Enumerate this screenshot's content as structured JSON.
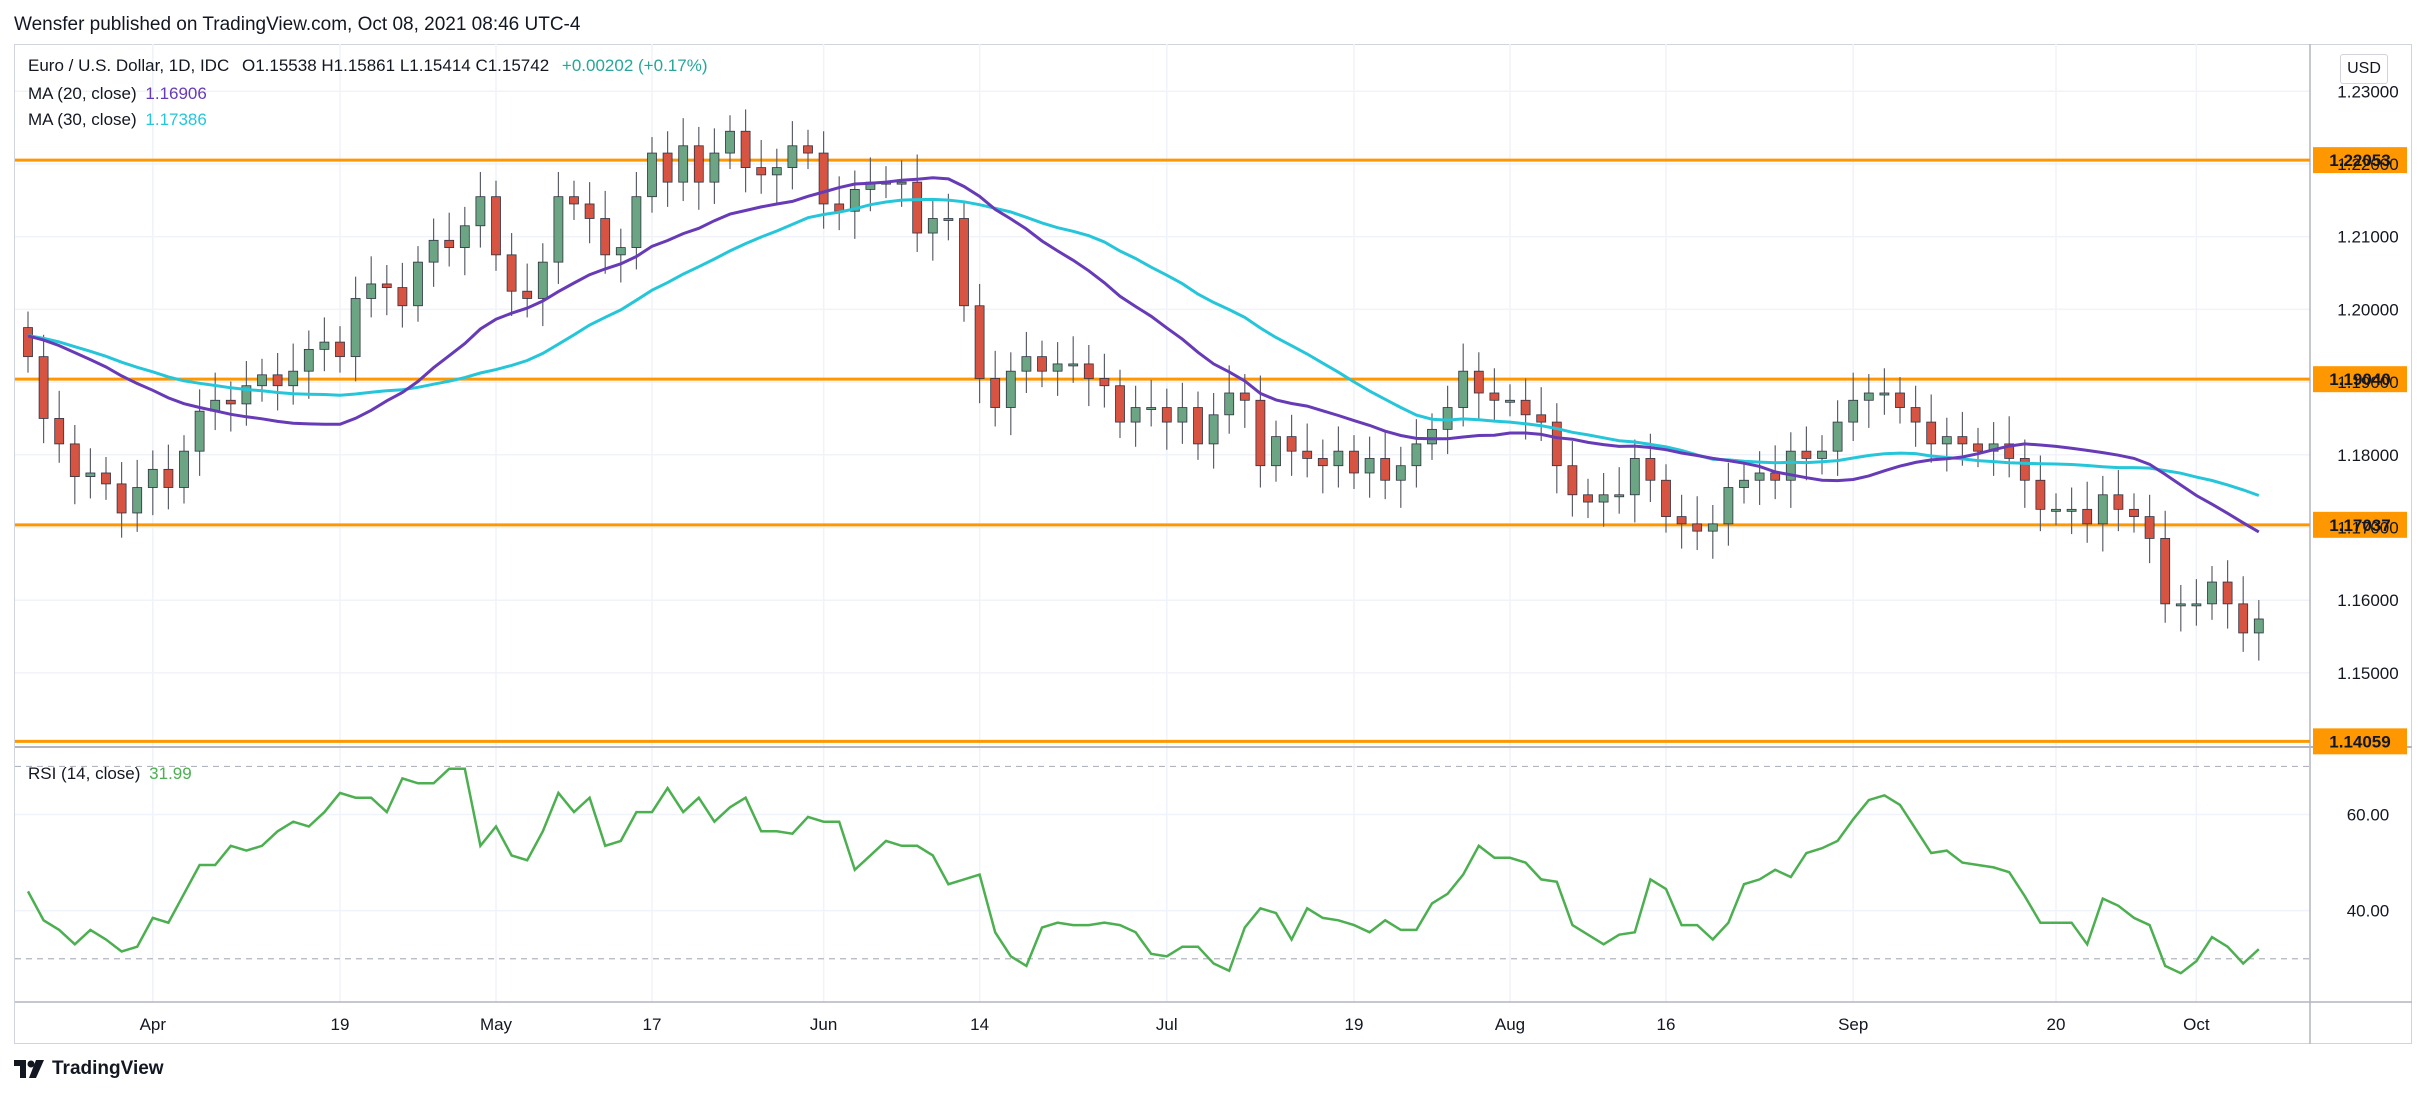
{
  "header": {
    "published": "Wensfer published on TradingView.com, Oct 08, 2021 08:46 UTC-4"
  },
  "legend": {
    "symbol": "Euro / U.S. Dollar, 1D, IDC",
    "ohlc": "O1.15538  H1.15861  L1.15414  C1.15742",
    "change": "+0.00202 (+0.17%)",
    "ma20_label": "MA (20, close)",
    "ma20_value": "1.16906",
    "ma30_label": "MA (30, close)",
    "ma30_value": "1.17386",
    "rsi_label": "RSI (14, close)",
    "rsi_value": "31.99"
  },
  "currency_button": "USD",
  "footer": {
    "brand": "TradingView"
  },
  "colors": {
    "up": "#6ba583",
    "down": "#d75442",
    "ma20": "#673ab7",
    "ma30": "#26c6da",
    "level": "#ff9800",
    "rsi": "#4caf50",
    "grid": "#f0f3fa"
  },
  "chart_data": [
    {
      "type": "candlestick",
      "title": "Euro / U.S. Dollar, 1D, IDC",
      "ylim": [
        1.1405,
        1.2365
      ],
      "y_ticks": [
        1.15,
        1.16,
        1.17,
        1.18,
        1.19,
        1.2,
        1.21,
        1.22,
        1.23
      ],
      "y_tick_labels": [
        "1.15000",
        "1.16000",
        "1.17000",
        "1.18000",
        "1.19000",
        "1.20000",
        "1.21000",
        "1.22000",
        "1.23000"
      ],
      "x_tick_labels": [
        {
          "label": "Apr",
          "index": 8
        },
        {
          "label": "19",
          "index": 20
        },
        {
          "label": "May",
          "index": 30
        },
        {
          "label": "17",
          "index": 40
        },
        {
          "label": "Jun",
          "index": 51
        },
        {
          "label": "14",
          "index": 61
        },
        {
          "label": "Jul",
          "index": 73
        },
        {
          "label": "19",
          "index": 85
        },
        {
          "label": "Aug",
          "index": 95
        },
        {
          "label": "16",
          "index": 105
        },
        {
          "label": "Sep",
          "index": 117
        },
        {
          "label": "20",
          "index": 130
        },
        {
          "label": "Oct",
          "index": 139
        }
      ],
      "horizontal_levels": [
        1.22053,
        1.1904,
        1.17037,
        1.14059
      ],
      "horizontal_level_labels": [
        "1.22053",
        "1.19040",
        "1.17037",
        "1.14059"
      ],
      "series": [
        {
          "name": "EURUSD",
          "closes": [
            1.1935,
            1.185,
            1.1815,
            1.177,
            1.1775,
            1.176,
            1.172,
            1.1755,
            1.178,
            1.1755,
            1.1805,
            1.186,
            1.1875,
            1.187,
            1.1895,
            1.191,
            1.1895,
            1.1915,
            1.1945,
            1.1955,
            1.1935,
            1.2015,
            1.2035,
            1.203,
            1.2005,
            1.2065,
            1.2095,
            1.2085,
            1.2115,
            1.2155,
            1.2075,
            1.2025,
            1.2015,
            1.2065,
            1.2155,
            1.2145,
            1.2125,
            1.2075,
            1.2085,
            1.2155,
            1.2215,
            1.2175,
            1.2225,
            1.2175,
            1.2215,
            1.2245,
            1.2195,
            1.2185,
            1.2195,
            1.2225,
            1.2215,
            1.2145,
            1.2135,
            1.2165,
            1.2175,
            1.2175,
            1.2175,
            1.2105,
            1.2125,
            1.2125,
            1.2005,
            1.1905,
            1.1865,
            1.1915,
            1.1935,
            1.1915,
            1.1925,
            1.1925,
            1.1905,
            1.1895,
            1.1845,
            1.1865,
            1.1865,
            1.1845,
            1.1865,
            1.1815,
            1.1855,
            1.1885,
            1.1875,
            1.1785,
            1.1825,
            1.1805,
            1.1795,
            1.1785,
            1.1805,
            1.1775,
            1.1795,
            1.1765,
            1.1785,
            1.1815,
            1.1835,
            1.1865,
            1.1915,
            1.1885,
            1.1875,
            1.1875,
            1.1855,
            1.1845,
            1.1785,
            1.1745,
            1.1735,
            1.1745,
            1.1745,
            1.1795,
            1.1765,
            1.1715,
            1.1705,
            1.1695,
            1.1705,
            1.1755,
            1.1765,
            1.1775,
            1.1765,
            1.1805,
            1.1795,
            1.1805,
            1.1845,
            1.1875,
            1.1885,
            1.1885,
            1.1865,
            1.1845,
            1.1815,
            1.1825,
            1.1815,
            1.1805,
            1.1815,
            1.1795,
            1.1765,
            1.1725,
            1.1725,
            1.1725,
            1.1705,
            1.1745,
            1.1725,
            1.1715,
            1.1685,
            1.1595,
            1.1595,
            1.1595,
            1.1625,
            1.1595,
            1.1555,
            1.15742
          ]
        }
      ]
    },
    {
      "type": "line",
      "title": "RSI (14, close)",
      "ylim": [
        21,
        73
      ],
      "y_ticks": [
        40,
        60
      ],
      "y_tick_labels": [
        "40.00",
        "60.00"
      ],
      "dashed_levels": [
        30,
        70
      ],
      "series": [
        {
          "name": "RSI",
          "values": [
            44,
            38,
            36,
            33,
            36,
            34,
            31.5,
            32.5,
            38.5,
            37.5,
            43.5,
            49.5,
            49.5,
            53.5,
            52.5,
            53.5,
            56.5,
            58.5,
            57.5,
            60.5,
            64.5,
            63.5,
            63.5,
            60.5,
            67.5,
            66.5,
            66.5,
            69.5,
            69.5,
            53.5,
            57.5,
            51.5,
            50.5,
            56.5,
            64.5,
            60.5,
            63.5,
            53.5,
            54.5,
            60.5,
            60.5,
            65.5,
            60.5,
            63.5,
            58.5,
            61.5,
            63.5,
            56.5,
            56.5,
            56,
            59.5,
            58.5,
            58.5,
            48.5,
            51.5,
            54.5,
            53.5,
            53.5,
            51.5,
            45.5,
            46.5,
            47.5,
            35.5,
            30.5,
            28.5,
            36.5,
            37.5,
            37,
            37,
            37.5,
            37,
            35.5,
            31,
            30.5,
            32.5,
            32.5,
            29,
            27.5,
            36.5,
            40.5,
            39.5,
            34,
            40.5,
            38.5,
            38,
            37,
            35.5,
            38,
            36,
            36,
            41.5,
            43.5,
            47.5,
            53.5,
            51,
            51,
            50,
            46.5,
            46,
            37,
            35,
            33,
            35,
            35.5,
            46.5,
            44.5,
            37,
            37,
            34,
            37.5,
            45.5,
            46.5,
            48.5,
            47,
            52,
            53,
            54.5,
            59,
            63,
            64,
            62,
            57,
            52,
            52.5,
            50,
            49.5,
            49,
            48,
            43,
            37.5,
            37.5,
            37.5,
            33,
            42.5,
            41,
            38.5,
            37,
            28.5,
            27,
            29.5,
            34.5,
            32.5,
            29,
            31.99
          ]
        }
      ]
    }
  ]
}
